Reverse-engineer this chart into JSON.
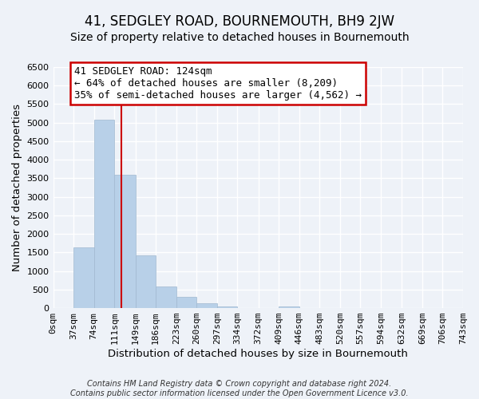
{
  "title": "41, SEDGLEY ROAD, BOURNEMOUTH, BH9 2JW",
  "subtitle": "Size of property relative to detached houses in Bournemouth",
  "xlabel": "Distribution of detached houses by size in Bournemouth",
  "ylabel": "Number of detached properties",
  "footer_line1": "Contains HM Land Registry data © Crown copyright and database right 2024.",
  "footer_line2": "Contains public sector information licensed under the Open Government Licence v3.0.",
  "bin_edges": [
    0,
    37,
    74,
    111,
    149,
    186,
    223,
    260,
    297,
    334,
    372,
    409,
    446,
    483,
    520,
    557,
    594,
    632,
    669,
    706,
    743
  ],
  "bin_labels": [
    "0sqm",
    "37sqm",
    "74sqm",
    "111sqm",
    "149sqm",
    "186sqm",
    "223sqm",
    "260sqm",
    "297sqm",
    "334sqm",
    "372sqm",
    "409sqm",
    "446sqm",
    "483sqm",
    "520sqm",
    "557sqm",
    "594sqm",
    "632sqm",
    "669sqm",
    "706sqm",
    "743sqm"
  ],
  "counts": [
    0,
    1630,
    5080,
    3600,
    1430,
    580,
    300,
    140,
    50,
    0,
    0,
    50,
    0,
    0,
    0,
    0,
    0,
    0,
    0,
    0
  ],
  "bar_color": "#b8d0e8",
  "bar_edgecolor": "#a0b8d0",
  "ylim": [
    0,
    6500
  ],
  "yticks": [
    0,
    500,
    1000,
    1500,
    2000,
    2500,
    3000,
    3500,
    4000,
    4500,
    5000,
    5500,
    6000,
    6500
  ],
  "property_line_x": 124,
  "vline_color": "#cc0000",
  "annotation_text_line1": "41 SEDGLEY ROAD: 124sqm",
  "annotation_text_line2": "← 64% of detached houses are smaller (8,209)",
  "annotation_text_line3": "35% of semi-detached houses are larger (4,562) →",
  "annotation_box_color": "#ffffff",
  "annotation_box_edgecolor": "#cc0000",
  "bg_color": "#eef2f8",
  "grid_color": "#ffffff",
  "title_fontsize": 12,
  "subtitle_fontsize": 10,
  "axis_label_fontsize": 9.5,
  "tick_fontsize": 8,
  "annotation_fontsize": 9,
  "footer_fontsize": 7
}
